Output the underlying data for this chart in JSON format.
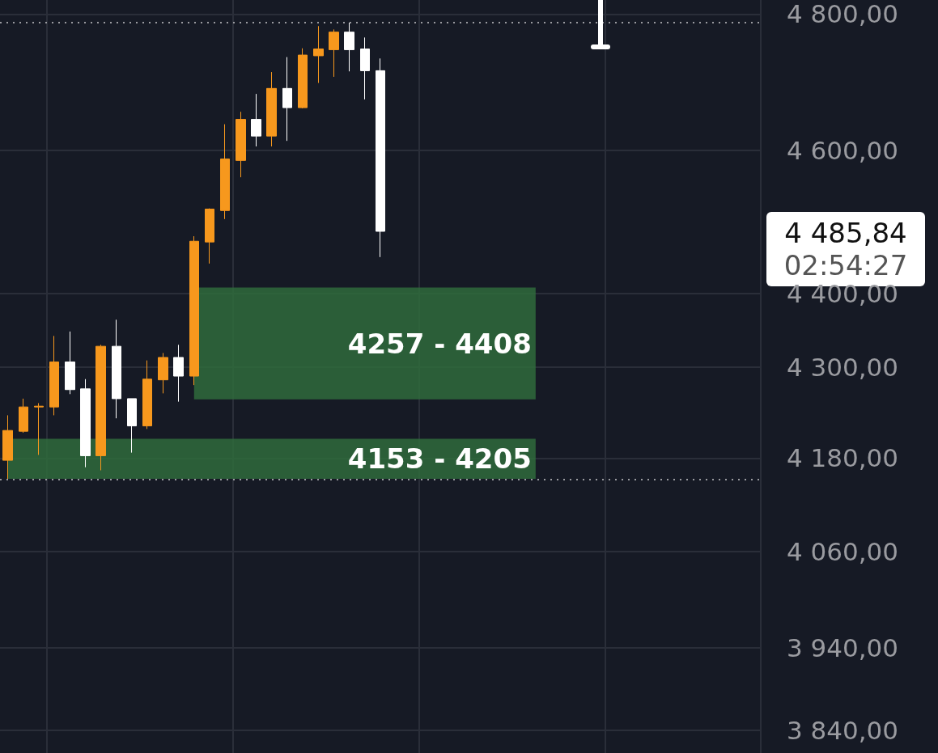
{
  "chart_data": {
    "type": "candlestick",
    "categories": [
      null,
      null,
      null,
      null,
      null,
      null,
      null,
      null,
      null,
      null,
      null,
      null,
      null,
      null,
      null,
      null,
      null,
      null,
      null,
      null,
      null,
      null,
      null,
      null,
      null,
      null,
      null,
      null,
      null,
      null,
      null,
      null,
      null,
      null,
      null,
      null,
      null,
      null,
      null,
      null,
      null,
      null,
      null,
      null,
      null,
      null,
      null,
      null,
      null
    ],
    "ohlc": [
      [
        4177,
        4236,
        4152,
        4216
      ],
      [
        4215,
        4258,
        4213,
        4247
      ],
      [
        4247,
        4252,
        4184,
        4248
      ],
      [
        4247,
        4342,
        4236,
        4307
      ],
      [
        4307,
        4348,
        4264,
        4270
      ],
      [
        4271,
        4284,
        4168,
        4183
      ],
      [
        4183,
        4330,
        4164,
        4328
      ],
      [
        4328,
        4364,
        4232,
        4258
      ],
      [
        4258,
        4258,
        4187,
        4222
      ],
      [
        4222,
        4309,
        4218,
        4284
      ],
      [
        4283,
        4319,
        4265,
        4313
      ],
      [
        4313,
        4330,
        4254,
        4288
      ],
      [
        4288,
        4479,
        4276,
        4472
      ],
      [
        4471,
        4518,
        4441,
        4517
      ],
      [
        4515,
        4638,
        4503,
        4588
      ],
      [
        4586,
        4656,
        4562,
        4645
      ],
      [
        4645,
        4682,
        4606,
        4621
      ],
      [
        4621,
        4714,
        4606,
        4690
      ],
      [
        4690,
        4736,
        4614,
        4662
      ],
      [
        4662,
        4749,
        4661,
        4739
      ],
      [
        4738,
        4782,
        4698,
        4748
      ],
      [
        4747,
        4777,
        4707,
        4773
      ],
      [
        4773,
        4787,
        4715,
        4747
      ],
      [
        4748,
        4765,
        4674,
        4716
      ],
      [
        4716,
        4734,
        4450,
        4485.84
      ],
      null,
      null,
      null,
      null,
      null,
      null,
      null,
      null,
      null,
      null,
      null,
      null,
      null,
      null,
      null,
      null,
      null,
      null,
      null,
      null,
      null,
      null,
      null,
      null
    ],
    "colors": [
      "#f7981d",
      "#f7981d",
      "#f7981d",
      "#f7981d",
      "#ffffff",
      "#ffffff",
      "#f7981d",
      "#ffffff",
      "#ffffff",
      "#f7981d",
      "#f7981d",
      "#ffffff",
      "#f7981d",
      "#f7981d",
      "#f7981d",
      "#f7981d",
      "#ffffff",
      "#f7981d",
      "#ffffff",
      "#f7981d",
      "#f7981d",
      "#f7981d",
      "#ffffff",
      "#ffffff",
      "#ffffff",
      null,
      null,
      null,
      null,
      null,
      null,
      null,
      null,
      null,
      null,
      null,
      null,
      null,
      null,
      null,
      null,
      null,
      null,
      null,
      null,
      null,
      null,
      null,
      null
    ],
    "log": true,
    "ylim": [
      3813,
      4821
    ],
    "yticks": [
      {
        "value": 3840,
        "label": "3 840,00"
      },
      {
        "value": 3940,
        "label": "3 940,00"
      },
      {
        "value": 4060,
        "label": "4 060,00"
      },
      {
        "value": 4180,
        "label": "4 180,00"
      },
      {
        "value": 4300,
        "label": "4 300,00"
      },
      {
        "value": 4400,
        "label": "4 400,00"
      },
      {
        "value": 4600,
        "label": "4 600,00"
      },
      {
        "value": 4800,
        "label": "4 800,00"
      }
    ],
    "tick_labels": "y",
    "grid": true,
    "bands": [
      {
        "axis": "y",
        "from": 4257,
        "to": 4408,
        "label": "4257 - 4408",
        "color": "#2f6b3c"
      },
      {
        "axis": "y",
        "from": 4153,
        "to": 4205,
        "label": "4153 - 4205",
        "color": "#2f6b3c"
      }
    ],
    "ref_lines": [
      {
        "axis": "y",
        "value": 4787,
        "line_style": "dotted",
        "color": "#9a9ba0"
      },
      {
        "axis": "y",
        "value": 4152,
        "line_style": "dotted",
        "color": "#9a9ba0"
      }
    ],
    "annotations": [
      "4 485,84",
      "02:54:27"
    ]
  }
}
